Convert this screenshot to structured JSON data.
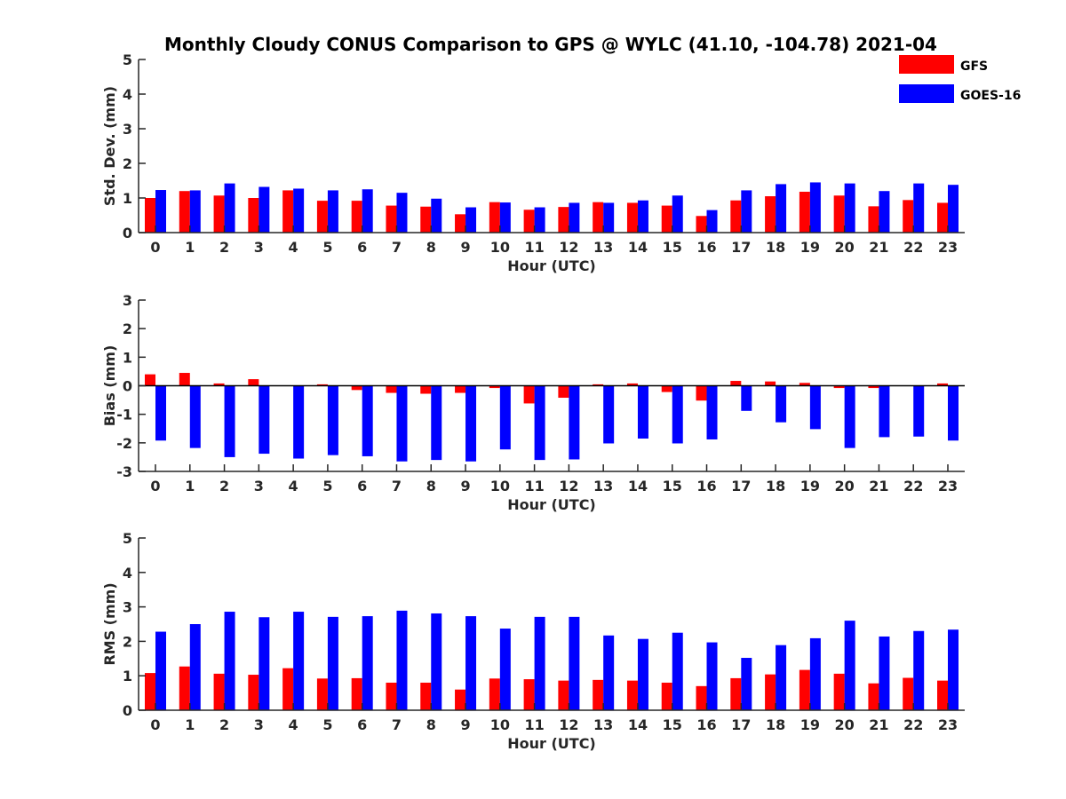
{
  "figure_title": "Monthly Cloudy CONUS Comparison to GPS @ WYLC (41.10, -104.78) 2021-04",
  "colors": {
    "GFS": "#ff0000",
    "GOES-16": "#0000ff"
  },
  "legend": [
    {
      "name": "GFS",
      "color": "#ff0000"
    },
    {
      "name": "GOES-16",
      "color": "#0000ff"
    }
  ],
  "chart_data": [
    {
      "type": "bar",
      "ylabel": "Std. Dev. (mm)",
      "xlabel": "Hour (UTC)",
      "ylim": [
        0,
        5
      ],
      "yticks": [
        0,
        1,
        2,
        3,
        4,
        5
      ],
      "categories": [
        "0",
        "1",
        "2",
        "3",
        "4",
        "5",
        "6",
        "7",
        "8",
        "9",
        "10",
        "11",
        "12",
        "13",
        "14",
        "15",
        "16",
        "17",
        "18",
        "19",
        "20",
        "21",
        "22",
        "23"
      ],
      "series": [
        {
          "name": "GFS",
          "values": [
            1.0,
            1.2,
            1.07,
            1.0,
            1.22,
            0.92,
            0.92,
            0.78,
            0.75,
            0.53,
            0.88,
            0.66,
            0.74,
            0.88,
            0.86,
            0.78,
            0.48,
            0.93,
            1.05,
            1.18,
            1.07,
            0.76,
            0.94,
            0.86
          ]
        },
        {
          "name": "GOES-16",
          "values": [
            1.23,
            1.22,
            1.42,
            1.32,
            1.27,
            1.22,
            1.25,
            1.15,
            0.98,
            0.73,
            0.87,
            0.73,
            0.86,
            0.86,
            0.93,
            1.07,
            0.65,
            1.22,
            1.4,
            1.45,
            1.42,
            1.2,
            1.42,
            1.38
          ]
        }
      ]
    },
    {
      "type": "bar",
      "ylabel": "Bias (mm)",
      "xlabel": "Hour (UTC)",
      "ylim": [
        -3,
        3
      ],
      "yticks": [
        -3,
        -2,
        -1,
        0,
        1,
        2,
        3
      ],
      "categories": [
        "0",
        "1",
        "2",
        "3",
        "4",
        "5",
        "6",
        "7",
        "8",
        "9",
        "10",
        "11",
        "12",
        "13",
        "14",
        "15",
        "16",
        "17",
        "18",
        "19",
        "20",
        "21",
        "22",
        "23"
      ],
      "series": [
        {
          "name": "GFS",
          "values": [
            0.4,
            0.45,
            0.08,
            0.23,
            0.0,
            0.05,
            -0.15,
            -0.25,
            -0.28,
            -0.25,
            -0.08,
            -0.62,
            -0.42,
            0.05,
            0.08,
            -0.22,
            -0.52,
            0.17,
            0.15,
            0.1,
            -0.08,
            -0.08,
            0.0,
            0.08
          ]
        },
        {
          "name": "GOES-16",
          "values": [
            -1.92,
            -2.18,
            -2.5,
            -2.38,
            -2.55,
            -2.43,
            -2.47,
            -2.65,
            -2.6,
            -2.65,
            -2.23,
            -2.6,
            -2.58,
            -2.02,
            -1.85,
            -2.02,
            -1.88,
            -0.88,
            -1.28,
            -1.52,
            -2.18,
            -1.8,
            -1.78,
            -1.92
          ]
        }
      ]
    },
    {
      "type": "bar",
      "ylabel": "RMS (mm)",
      "xlabel": "Hour (UTC)",
      "ylim": [
        0,
        5
      ],
      "yticks": [
        0,
        1,
        2,
        3,
        4,
        5
      ],
      "categories": [
        "0",
        "1",
        "2",
        "3",
        "4",
        "5",
        "6",
        "7",
        "8",
        "9",
        "10",
        "11",
        "12",
        "13",
        "14",
        "15",
        "16",
        "17",
        "18",
        "19",
        "20",
        "21",
        "22",
        "23"
      ],
      "series": [
        {
          "name": "GFS",
          "values": [
            1.08,
            1.27,
            1.06,
            1.03,
            1.22,
            0.92,
            0.93,
            0.8,
            0.8,
            0.6,
            0.92,
            0.9,
            0.86,
            0.88,
            0.86,
            0.8,
            0.7,
            0.93,
            1.04,
            1.17,
            1.06,
            0.78,
            0.94,
            0.86
          ]
        },
        {
          "name": "GOES-16",
          "values": [
            2.28,
            2.5,
            2.86,
            2.7,
            2.86,
            2.71,
            2.73,
            2.89,
            2.81,
            2.73,
            2.37,
            2.71,
            2.71,
            2.17,
            2.07,
            2.25,
            1.97,
            1.52,
            1.89,
            2.09,
            2.6,
            2.14,
            2.3,
            2.34
          ]
        }
      ]
    }
  ]
}
